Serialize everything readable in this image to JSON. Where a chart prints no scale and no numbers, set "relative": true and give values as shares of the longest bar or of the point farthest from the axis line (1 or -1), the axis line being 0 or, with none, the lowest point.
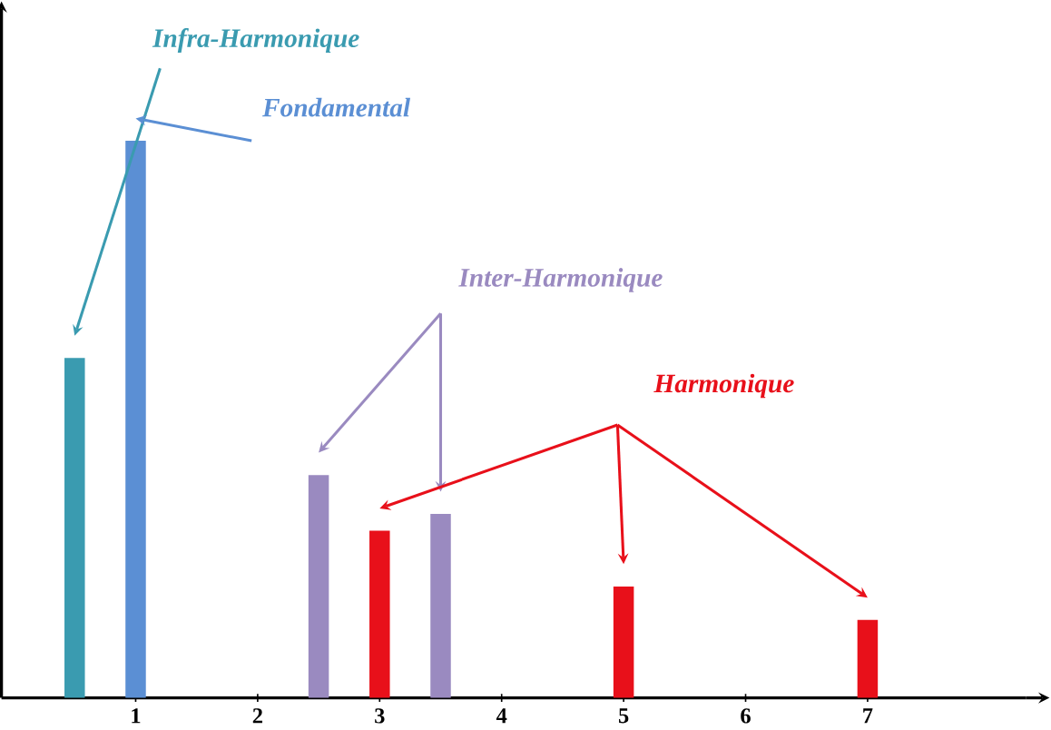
{
  "chart_data": {
    "type": "bar",
    "relative": true,
    "xlim": [
      -0.1,
      8.3
    ],
    "xticks": [
      1,
      2,
      3,
      4,
      5,
      6,
      7
    ],
    "series": [
      {
        "name": "Infra-Harmonique",
        "color": "#3a9bb0",
        "x": [
          0.5
        ],
        "values": [
          0.61
        ]
      },
      {
        "name": "Fondamental",
        "color": "#5b8fd4",
        "x": [
          1
        ],
        "values": [
          1
        ]
      },
      {
        "name": "Inter-Harmonique",
        "color": "#9a8ac0",
        "x": [
          2.5,
          3.5
        ],
        "values": [
          0.4,
          0.33
        ]
      },
      {
        "name": "Harmonique",
        "color": "#e8101a",
        "x": [
          3,
          5,
          7
        ],
        "values": [
          0.3,
          0.2,
          0.14
        ]
      }
    ]
  }
}
